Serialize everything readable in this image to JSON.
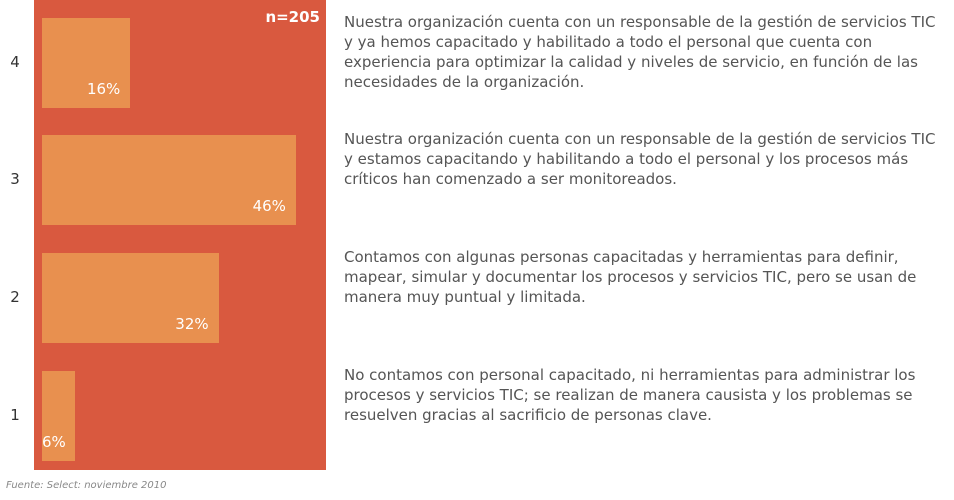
{
  "chart_data": {
    "type": "barh",
    "categories": [
      "4",
      "3",
      "2",
      "1"
    ],
    "values": [
      16,
      46,
      32,
      6
    ],
    "value_labels": [
      "16%",
      "46%",
      "32%",
      "6%"
    ],
    "descriptions": [
      "Nuestra organización cuenta con un responsable de la gestión de servicios TIC y ya hemos capacitado y habilitado a todo el personal que cuenta con experiencia para optimizar la calidad y niveles de servicio, en función de las necesidades de la organización.",
      "Nuestra organización cuenta con un responsable de la gestión de servicios TIC y estamos capacitando y habilitando a todo el personal y los procesos más críticos han comenzado a ser monitoreados.",
      "Contamos con algunas personas capacitadas y herramientas para definir, mapear, simular y documentar los procesos y servicios TIC, pero se usan de manera muy puntual y limitada.",
      "No contamos con personal capacitado, ni herramientas para administrar los procesos y servicios TIC; se realizan de manera causista y los problemas se resuelven gracias al sacrificio de personas clave."
    ],
    "annotation": "n=205",
    "source": "Fuente: Select: noviembre 2010",
    "xlim": [
      0,
      50
    ],
    "color": "#e8904f",
    "background": "#d9593f"
  }
}
